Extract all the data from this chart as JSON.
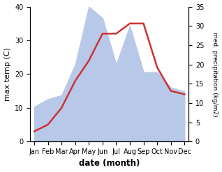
{
  "months": [
    "Jan",
    "Feb",
    "Mar",
    "Apr",
    "May",
    "Jun",
    "Jul",
    "Aug",
    "Sep",
    "Oct",
    "Nov",
    "Dec"
  ],
  "temperature": [
    3,
    5,
    10,
    18,
    24,
    32,
    32,
    35,
    35,
    22,
    15,
    14
  ],
  "precipitation": [
    9,
    11,
    12,
    20,
    35,
    32,
    20,
    30,
    18,
    18,
    14,
    13
  ],
  "temp_color": "#cc3333",
  "precip_color": "#b8c8e8",
  "temp_ylim": [
    0,
    40
  ],
  "precip_ylim": [
    0,
    35
  ],
  "temp_yticks": [
    0,
    10,
    20,
    30,
    40
  ],
  "precip_yticks": [
    0,
    5,
    10,
    15,
    20,
    25,
    30,
    35
  ],
  "xlabel": "date (month)",
  "ylabel_left": "max temp (C)",
  "ylabel_right": "med. precipitation (kg/m2)",
  "bg_color": "#ffffff",
  "line_width": 1.8
}
